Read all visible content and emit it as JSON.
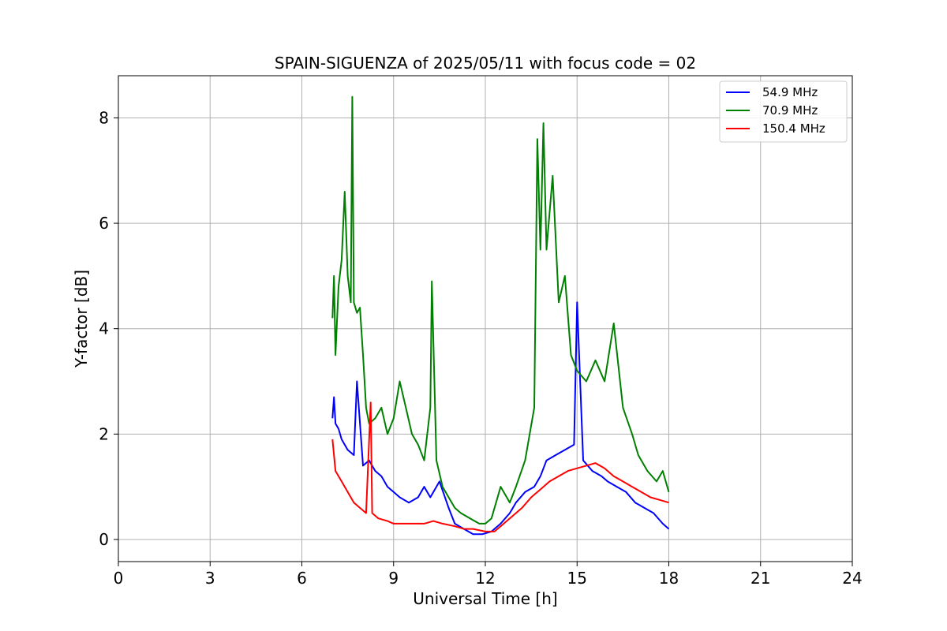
{
  "chart_data": {
    "type": "line",
    "title": "SPAIN-SIGUENZA of 2025/05/11 with focus code = 02",
    "xlabel": "Universal Time [h]",
    "ylabel": "Y-factor [dB]",
    "xlim": [
      0,
      24
    ],
    "ylim": [
      -0.42,
      8.8
    ],
    "xticks": [
      0,
      3,
      6,
      9,
      12,
      15,
      18,
      21,
      24
    ],
    "yticks": [
      0,
      2,
      4,
      6,
      8
    ],
    "grid": true,
    "legend_position": "top-right",
    "series": [
      {
        "name": "54.9 MHz",
        "color": "#0000ff",
        "x": [
          7.0,
          7.05,
          7.1,
          7.2,
          7.3,
          7.5,
          7.7,
          7.8,
          8.0,
          8.2,
          8.4,
          8.6,
          8.8,
          9.0,
          9.2,
          9.5,
          9.8,
          10.0,
          10.2,
          10.5,
          10.8,
          11.0,
          11.3,
          11.6,
          11.9,
          12.2,
          12.5,
          12.8,
          13.0,
          13.3,
          13.6,
          13.8,
          14.0,
          14.3,
          14.6,
          14.9,
          15.0,
          15.2,
          15.5,
          15.8,
          16.0,
          16.3,
          16.6,
          16.9,
          17.2,
          17.5,
          17.8,
          18.0
        ],
        "y": [
          2.3,
          2.7,
          2.2,
          2.1,
          1.9,
          1.7,
          1.6,
          3.0,
          1.4,
          1.5,
          1.3,
          1.2,
          1.0,
          0.9,
          0.8,
          0.7,
          0.8,
          1.0,
          0.8,
          1.1,
          0.6,
          0.3,
          0.2,
          0.1,
          0.1,
          0.15,
          0.3,
          0.5,
          0.7,
          0.9,
          1.0,
          1.2,
          1.5,
          1.6,
          1.7,
          1.8,
          4.5,
          1.5,
          1.3,
          1.2,
          1.1,
          1.0,
          0.9,
          0.7,
          0.6,
          0.5,
          0.3,
          0.2
        ]
      },
      {
        "name": "70.9 MHz",
        "color": "#008000",
        "x": [
          7.0,
          7.05,
          7.1,
          7.2,
          7.3,
          7.4,
          7.5,
          7.6,
          7.65,
          7.7,
          7.8,
          7.9,
          8.0,
          8.1,
          8.2,
          8.4,
          8.6,
          8.8,
          9.0,
          9.2,
          9.4,
          9.6,
          9.8,
          10.0,
          10.2,
          10.25,
          10.4,
          10.6,
          10.8,
          11.0,
          11.2,
          11.5,
          11.8,
          12.0,
          12.2,
          12.5,
          12.8,
          13.0,
          13.3,
          13.6,
          13.7,
          13.8,
          13.9,
          14.0,
          14.2,
          14.4,
          14.6,
          14.8,
          15.0,
          15.3,
          15.6,
          15.9,
          16.2,
          16.5,
          16.8,
          17.0,
          17.3,
          17.6,
          17.8,
          18.0
        ],
        "y": [
          4.2,
          5.0,
          3.5,
          4.8,
          5.3,
          6.6,
          5.0,
          4.5,
          8.4,
          4.5,
          4.3,
          4.4,
          3.5,
          2.5,
          2.2,
          2.3,
          2.5,
          2.0,
          2.3,
          3.0,
          2.5,
          2.0,
          1.8,
          1.5,
          2.5,
          4.9,
          1.5,
          1.0,
          0.8,
          0.6,
          0.5,
          0.4,
          0.3,
          0.3,
          0.4,
          1.0,
          0.7,
          1.0,
          1.5,
          2.5,
          7.6,
          5.5,
          7.9,
          5.5,
          6.9,
          4.5,
          5.0,
          3.5,
          3.2,
          3.0,
          3.4,
          3.0,
          4.1,
          2.5,
          2.0,
          1.6,
          1.3,
          1.1,
          1.3,
          0.9
        ]
      },
      {
        "name": "150.4 MHz",
        "color": "#ff0000",
        "x": [
          7.0,
          7.05,
          7.1,
          7.3,
          7.5,
          7.7,
          7.9,
          8.1,
          8.25,
          8.3,
          8.5,
          8.8,
          9.0,
          9.3,
          9.6,
          10.0,
          10.3,
          10.6,
          11.0,
          11.3,
          11.6,
          12.0,
          12.3,
          12.6,
          12.9,
          13.2,
          13.5,
          13.8,
          14.1,
          14.4,
          14.7,
          15.0,
          15.3,
          15.6,
          15.9,
          16.2,
          16.5,
          16.8,
          17.1,
          17.4,
          17.7,
          18.0
        ],
        "y": [
          1.9,
          1.6,
          1.3,
          1.1,
          0.9,
          0.7,
          0.6,
          0.5,
          2.6,
          0.5,
          0.4,
          0.35,
          0.3,
          0.3,
          0.3,
          0.3,
          0.35,
          0.3,
          0.25,
          0.2,
          0.2,
          0.15,
          0.15,
          0.3,
          0.45,
          0.6,
          0.8,
          0.95,
          1.1,
          1.2,
          1.3,
          1.35,
          1.4,
          1.45,
          1.35,
          1.2,
          1.1,
          1.0,
          0.9,
          0.8,
          0.75,
          0.7
        ]
      }
    ]
  }
}
